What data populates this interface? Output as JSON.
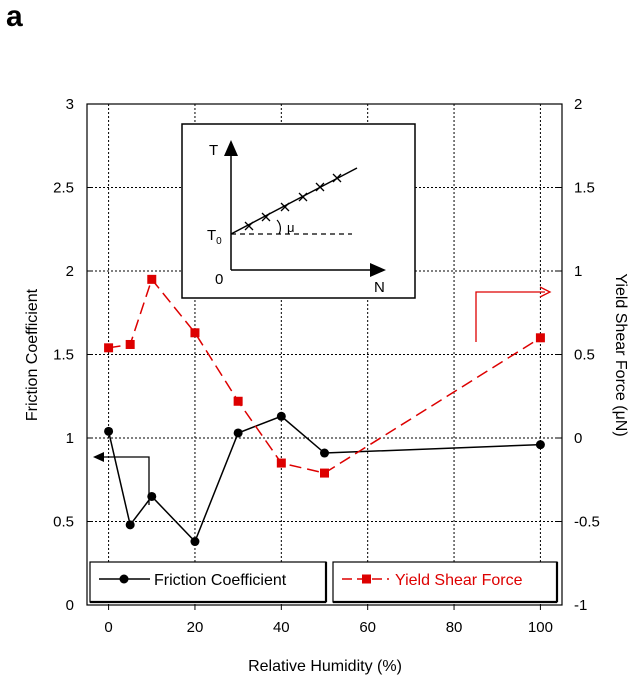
{
  "panel_label": "a",
  "chart_data": {
    "type": "line",
    "xlabel": "Relative Humidity (%)",
    "ylabel_left": "Friction Coefficient",
    "ylabel_right": "Yield Shear Force (μN)",
    "xlim": [
      -5,
      105
    ],
    "ylim_left": [
      0,
      3
    ],
    "ylim_right": [
      -1,
      2
    ],
    "x_ticks": [
      "0",
      "20",
      "40",
      "60",
      "80",
      "100"
    ],
    "y_ticks_left": [
      "0",
      "0.5",
      "1",
      "1.5",
      "2",
      "2.5",
      "3"
    ],
    "y_ticks_right": [
      "-1",
      "-0.5",
      "0",
      "0.5",
      "1",
      "1.5",
      "2"
    ],
    "grid": true,
    "series": [
      {
        "name": "Friction Coefficient",
        "axis": "left",
        "color": "#000000",
        "marker": "circle",
        "line": "solid",
        "x": [
          0,
          5,
          10,
          20,
          30,
          40,
          50,
          100
        ],
        "y": [
          1.04,
          0.48,
          0.65,
          0.38,
          1.03,
          1.13,
          0.91,
          0.96
        ]
      },
      {
        "name": "Yield Shear Force",
        "axis": "right",
        "color": "#dd0000",
        "marker": "square",
        "line": "dashed",
        "x": [
          0,
          5,
          10,
          20,
          30,
          40,
          50,
          100
        ],
        "y": [
          0.54,
          0.56,
          0.95,
          0.63,
          0.22,
          -0.15,
          -0.21,
          0.6
        ]
      }
    ],
    "legend": [
      "Friction Coefficient",
      "Yield Shear Force"
    ],
    "inset": {
      "y_axis_label": "T",
      "x_axis_label": "N",
      "intercept_label": "T",
      "intercept_subscript": "0",
      "origin_label": "0",
      "angle_label": "μ"
    }
  }
}
